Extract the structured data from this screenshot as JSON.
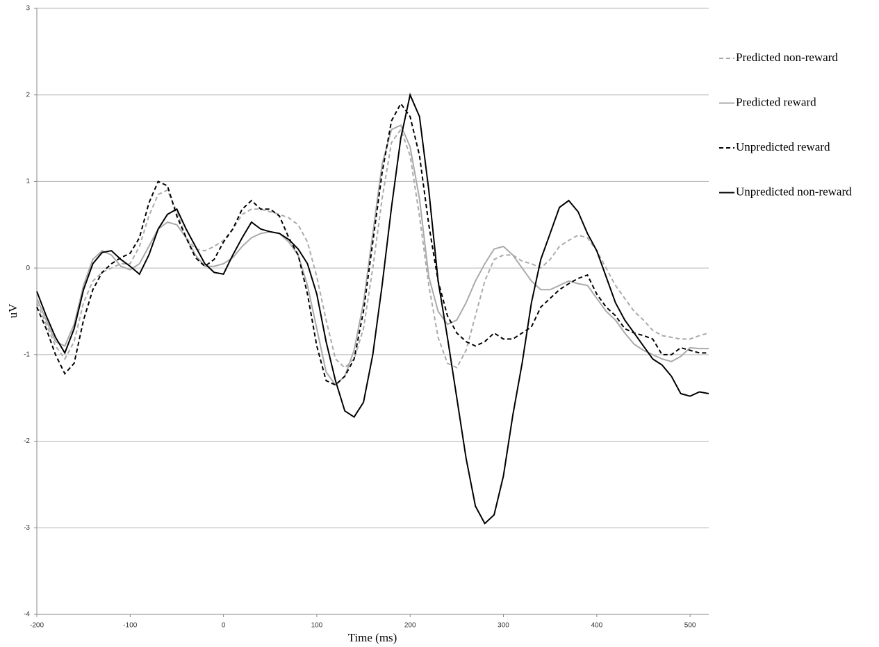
{
  "chart_data": {
    "type": "line",
    "x_label": "Time (ms)",
    "y_label": "uV",
    "x": [
      -200,
      -190,
      -180,
      -170,
      -160,
      -150,
      -140,
      -130,
      -120,
      -110,
      -100,
      -90,
      -80,
      -70,
      -60,
      -50,
      -40,
      -30,
      -20,
      -10,
      0,
      10,
      20,
      30,
      40,
      50,
      60,
      70,
      80,
      90,
      100,
      110,
      120,
      130,
      140,
      150,
      160,
      170,
      180,
      190,
      200,
      210,
      220,
      230,
      240,
      250,
      260,
      270,
      280,
      290,
      300,
      310,
      320,
      330,
      340,
      350,
      360,
      370,
      380,
      390,
      400,
      410,
      420,
      430,
      440,
      450,
      460,
      470,
      480,
      490,
      500,
      510,
      520
    ],
    "series": [
      {
        "name": "Predicted non-reward",
        "color": "#aaaaaa",
        "style": "dashed",
        "values": [
          -0.4,
          -0.65,
          -0.9,
          -1.05,
          -0.85,
          -0.4,
          -0.15,
          -0.05,
          0.0,
          0.05,
          0.05,
          0.25,
          0.6,
          0.85,
          0.9,
          0.65,
          0.35,
          0.22,
          0.2,
          0.25,
          0.32,
          0.45,
          0.62,
          0.68,
          0.68,
          0.65,
          0.62,
          0.58,
          0.5,
          0.3,
          -0.1,
          -0.6,
          -1.05,
          -1.15,
          -1.05,
          -0.7,
          0.0,
          0.8,
          1.45,
          1.6,
          1.3,
          0.6,
          -0.2,
          -0.8,
          -1.1,
          -1.15,
          -0.95,
          -0.55,
          -0.15,
          0.1,
          0.15,
          0.15,
          0.08,
          0.05,
          0.0,
          0.1,
          0.25,
          0.32,
          0.38,
          0.35,
          0.2,
          0.0,
          -0.2,
          -0.35,
          -0.5,
          -0.6,
          -0.72,
          -0.78,
          -0.8,
          -0.82,
          -0.82,
          -0.78,
          -0.75
        ]
      },
      {
        "name": "Predicted reward",
        "color": "#aaaaaa",
        "style": "solid",
        "values": [
          -0.35,
          -0.6,
          -0.85,
          -0.9,
          -0.65,
          -0.2,
          0.1,
          0.2,
          0.15,
          0.02,
          -0.02,
          0.05,
          0.25,
          0.45,
          0.53,
          0.5,
          0.35,
          0.15,
          0.02,
          0.02,
          0.05,
          0.12,
          0.25,
          0.35,
          0.4,
          0.42,
          0.4,
          0.3,
          0.15,
          -0.2,
          -0.7,
          -1.2,
          -1.35,
          -1.25,
          -0.95,
          -0.4,
          0.4,
          1.2,
          1.6,
          1.65,
          1.4,
          0.8,
          -0.1,
          -0.5,
          -0.65,
          -0.6,
          -0.4,
          -0.15,
          0.05,
          0.22,
          0.25,
          0.15,
          0.0,
          -0.15,
          -0.25,
          -0.25,
          -0.2,
          -0.15,
          -0.18,
          -0.2,
          -0.35,
          -0.5,
          -0.6,
          -0.75,
          -0.88,
          -0.95,
          -1.0,
          -1.05,
          -1.08,
          -1.02,
          -0.92,
          -0.93,
          -0.93
        ]
      },
      {
        "name": "Unpredicted reward",
        "color": "#000000",
        "style": "dashed",
        "values": [
          -0.45,
          -0.7,
          -1.0,
          -1.22,
          -1.1,
          -0.6,
          -0.25,
          -0.05,
          0.05,
          0.12,
          0.17,
          0.35,
          0.75,
          1.0,
          0.95,
          0.6,
          0.35,
          0.12,
          0.02,
          0.1,
          0.3,
          0.45,
          0.68,
          0.78,
          0.68,
          0.68,
          0.6,
          0.35,
          0.15,
          -0.3,
          -0.9,
          -1.3,
          -1.35,
          -1.25,
          -1.05,
          -0.5,
          0.3,
          1.1,
          1.7,
          1.9,
          1.75,
          1.3,
          0.5,
          -0.15,
          -0.55,
          -0.75,
          -0.85,
          -0.9,
          -0.85,
          -0.75,
          -0.82,
          -0.82,
          -0.75,
          -0.68,
          -0.45,
          -0.35,
          -0.25,
          -0.18,
          -0.12,
          -0.08,
          -0.3,
          -0.45,
          -0.55,
          -0.7,
          -0.75,
          -0.78,
          -0.82,
          -1.0,
          -1.0,
          -0.92,
          -0.95,
          -0.98,
          -0.98
        ]
      },
      {
        "name": "Unpredicted non-reward",
        "color": "#000000",
        "style": "solid",
        "values": [
          -0.27,
          -0.55,
          -0.8,
          -0.98,
          -0.7,
          -0.25,
          0.05,
          0.18,
          0.2,
          0.1,
          0.02,
          -0.07,
          0.15,
          0.45,
          0.62,
          0.68,
          0.45,
          0.25,
          0.05,
          -0.05,
          -0.07,
          0.15,
          0.35,
          0.53,
          0.45,
          0.42,
          0.4,
          0.33,
          0.22,
          0.05,
          -0.3,
          -0.85,
          -1.3,
          -1.65,
          -1.72,
          -1.55,
          -1.0,
          -0.2,
          0.7,
          1.5,
          2.0,
          1.75,
          0.9,
          -0.15,
          -0.8,
          -1.5,
          -2.2,
          -2.75,
          -2.95,
          -2.85,
          -2.4,
          -1.7,
          -1.1,
          -0.4,
          0.1,
          0.4,
          0.7,
          0.78,
          0.65,
          0.4,
          0.2,
          -0.1,
          -0.4,
          -0.6,
          -0.75,
          -0.9,
          -1.05,
          -1.12,
          -1.25,
          -1.45,
          -1.48,
          -1.43,
          -1.45
        ]
      }
    ],
    "xlim": [
      -200,
      520
    ],
    "xticks": [
      -200,
      -100,
      0,
      100,
      200,
      300,
      400,
      500
    ],
    "ylim": [
      -4,
      3
    ],
    "yticks": [
      -4,
      -3,
      -2,
      -1,
      0,
      1,
      2,
      3
    ],
    "grid": true,
    "legend": "right"
  }
}
